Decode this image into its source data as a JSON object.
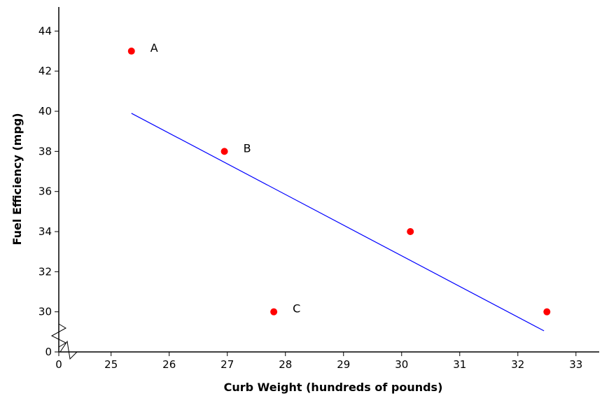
{
  "chart_data": {
    "type": "scatter",
    "title": "",
    "xlabel": "Curb Weight (hundreds of pounds)",
    "ylabel": "Fuel Efficiency  (mpg)",
    "xlim": [
      24.1,
      33.4
    ],
    "ylim": [
      28.0,
      45.2
    ],
    "x_ticks": [
      "0",
      "25",
      "26",
      "27",
      "28",
      "29",
      "30",
      "31",
      "32",
      "33"
    ],
    "x_tick_values": [
      null,
      25,
      26,
      27,
      28,
      29,
      30,
      31,
      32,
      33
    ],
    "y_ticks": [
      "0",
      "30",
      "32",
      "34",
      "36",
      "38",
      "40",
      "42",
      "44"
    ],
    "y_tick_values": [
      null,
      30,
      32,
      34,
      36,
      38,
      40,
      42,
      44
    ],
    "axis_breaks": true,
    "grid": false,
    "series": [
      {
        "color": "#ff0000",
        "points": [
          {
            "x": 25.35,
            "y": 43,
            "label": "A"
          },
          {
            "x": 26.95,
            "y": 38,
            "label": "B"
          },
          {
            "x": 27.8,
            "y": 30,
            "label": "C"
          },
          {
            "x": 30.15,
            "y": 34,
            "label": ""
          },
          {
            "x": 32.5,
            "y": 30,
            "label": ""
          }
        ]
      }
    ],
    "trendline": {
      "color": "#0000ff",
      "x": [
        25.35,
        32.45
      ],
      "y": [
        39.9,
        29.05
      ]
    }
  }
}
